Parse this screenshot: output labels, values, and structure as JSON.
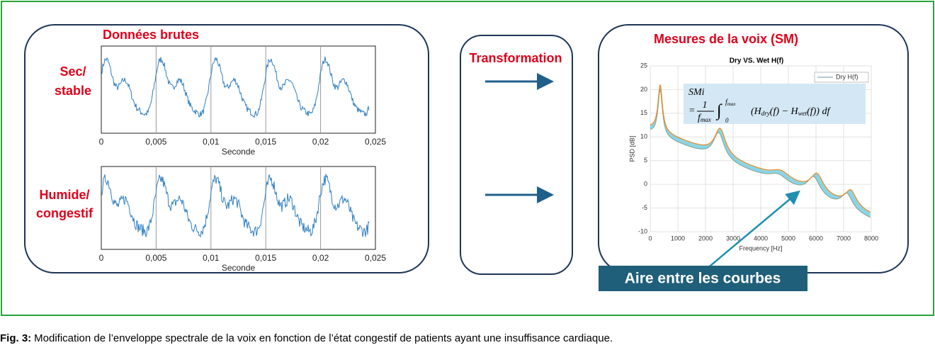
{
  "left_panel": {
    "title": "Données brutes",
    "row_labels": [
      [
        "Sec/",
        "stable"
      ],
      [
        "Humide/",
        "congestif"
      ]
    ],
    "plots": [
      {
        "xticks": [
          "0",
          "0,005",
          "0,01",
          "0,015",
          "0,02",
          "0,025"
        ],
        "xlabel": "Seconde"
      },
      {
        "xticks": [
          "0",
          "0,005",
          "0,01",
          "0,015",
          "0,02",
          "0,025"
        ],
        "xlabel": "Seconde"
      }
    ]
  },
  "middle_panel": {
    "title": "Transformation"
  },
  "right_panel": {
    "title": "Mesures de la voix (SM)",
    "chart": {
      "title": "Dry VS. Wet H(f)",
      "ylabel": "PSD [dB]",
      "xlabel": "Frequency [Hz]",
      "yticks": [
        "25",
        "20",
        "15",
        "10",
        "5",
        "0",
        "-5",
        "-10"
      ],
      "xticks": [
        "0",
        "1000",
        "2000",
        "3000",
        "4000",
        "5000",
        "6000",
        "7000",
        "8000"
      ],
      "legend": [
        "Dry H(f)"
      ]
    },
    "formula": {
      "lhs": "SMi",
      "equals": "=",
      "numerator": "1",
      "denominator": "f",
      "denominator_sub": "max",
      "integral": "∫",
      "lower": "0",
      "upper": "f",
      "upper_sub": "max",
      "body": [
        "(H",
        "dry",
        "(f) − H",
        "wet",
        "(f)) df"
      ]
    },
    "callout": "Aire entre les courbes"
  },
  "caption": {
    "label": "Fig. 3:",
    "text": "Modification de l’enveloppe spectrale de la voix en fonction de l’état congestif de patients ayant une insuffisance cardiaque."
  }
}
